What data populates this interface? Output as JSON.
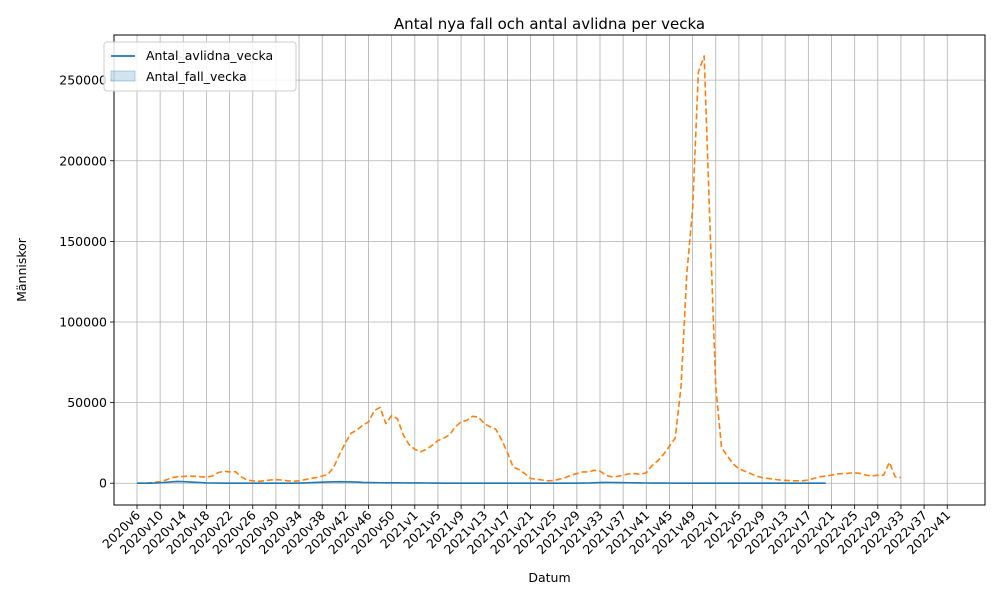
{
  "chart_data": {
    "type": "line",
    "title": "Antal nya fall och antal avlidna per vecka",
    "xlabel": "Datum",
    "ylabel": "Människor",
    "grid": true,
    "legend_position": "top-left",
    "legend": [
      {
        "label": "Antal_avlidna_vecka",
        "kind": "line",
        "color": "#1f77b4"
      },
      {
        "label": "Antal_fall_vecka",
        "kind": "patch",
        "color": "#1f77b4"
      }
    ],
    "x_tick_labels": [
      "2020v6",
      "2020v10",
      "2020v14",
      "2020v18",
      "2020v22",
      "2020v26",
      "2020v30",
      "2020v34",
      "2020v38",
      "2020v42",
      "2020v46",
      "2020v50",
      "2021v1",
      "2021v5",
      "2021v9",
      "2021v13",
      "2021v17",
      "2021v21",
      "2021v25",
      "2021v29",
      "2021v33",
      "2021v37",
      "2021v41",
      "2021v45",
      "2021v49",
      "2022v1",
      "2022v5",
      "2022v9",
      "2022v13",
      "2022v17",
      "2022v21",
      "2022v25",
      "2022v29",
      "2022v33",
      "2022v37",
      "2022v41"
    ],
    "ylim": [
      -13500,
      278000
    ],
    "yticks": [
      0,
      50000,
      100000,
      150000,
      200000,
      250000
    ],
    "ytick_labels": [
      "0",
      "50000",
      "100000",
      "150000",
      "200000",
      "250000"
    ],
    "series": [
      {
        "name": "Antal_avlidna_vecka",
        "color": "#1f77b4",
        "style": "solid",
        "values": [
          0,
          0,
          5,
          100,
          300,
          600,
          900,
          1100,
          1000,
          800,
          600,
          400,
          200,
          150,
          100,
          60,
          40,
          30,
          25,
          20,
          18,
          15,
          15,
          15,
          20,
          25,
          40,
          60,
          100,
          200,
          350,
          500,
          650,
          800,
          900,
          950,
          900,
          800,
          700,
          500,
          400,
          350,
          300,
          280,
          260,
          240,
          220,
          210,
          200,
          180,
          150,
          120,
          90,
          60,
          40,
          30,
          20,
          15,
          12,
          10,
          8,
          7,
          6,
          5,
          5,
          5,
          6,
          7,
          8,
          10,
          12,
          15,
          20,
          25,
          30,
          40,
          60,
          100,
          150,
          250,
          400,
          500,
          450,
          400,
          350,
          300,
          250,
          200,
          150,
          120,
          100,
          80,
          70,
          60,
          50,
          40,
          35,
          30,
          28,
          25,
          22,
          20,
          20,
          20,
          22,
          25,
          28,
          30,
          28,
          25,
          22,
          20,
          18,
          16,
          15,
          14,
          13,
          12,
          12,
          12
        ]
      },
      {
        "name": "",
        "color": "#ff7f0e",
        "style": "dashed",
        "values": [
          0,
          50,
          200,
          500,
          1000,
          2000,
          3500,
          4000,
          4200,
          4500,
          4300,
          4000,
          3800,
          4500,
          6500,
          7500,
          7000,
          7200,
          4000,
          2000,
          1500,
          1200,
          1500,
          2000,
          2200,
          2000,
          1500,
          1200,
          1500,
          2200,
          3000,
          3500,
          4500,
          5500,
          10000,
          18000,
          25000,
          31000,
          33000,
          36000,
          38000,
          45000,
          47000,
          37000,
          42000,
          40000,
          30000,
          24000,
          21000,
          19500,
          21000,
          23500,
          26500,
          28000,
          30000,
          35000,
          38000,
          39000,
          41500,
          41000,
          37000,
          35000,
          33500,
          27000,
          19000,
          10000,
          8500,
          6000,
          3000,
          2500,
          2000,
          1500,
          1700,
          2500,
          3500,
          5000,
          6000,
          7000,
          7000,
          8000,
          7500,
          5000,
          4000,
          4200,
          5000,
          5800,
          6000,
          5500,
          6500,
          11000,
          14000,
          18000,
          23000,
          28000,
          60000,
          130000,
          170000,
          255000,
          265000,
          160000,
          60000,
          22000,
          17000,
          12000,
          9000,
          7500,
          6000,
          4500,
          3500,
          3000,
          2500,
          2000,
          1800,
          1500,
          1500,
          1500,
          2000,
          3000,
          4000,
          4500,
          5000,
          5800,
          6000,
          6200,
          6500,
          6000,
          5000,
          4500,
          5000,
          5000,
          13000,
          4000,
          3500
        ]
      }
    ]
  }
}
